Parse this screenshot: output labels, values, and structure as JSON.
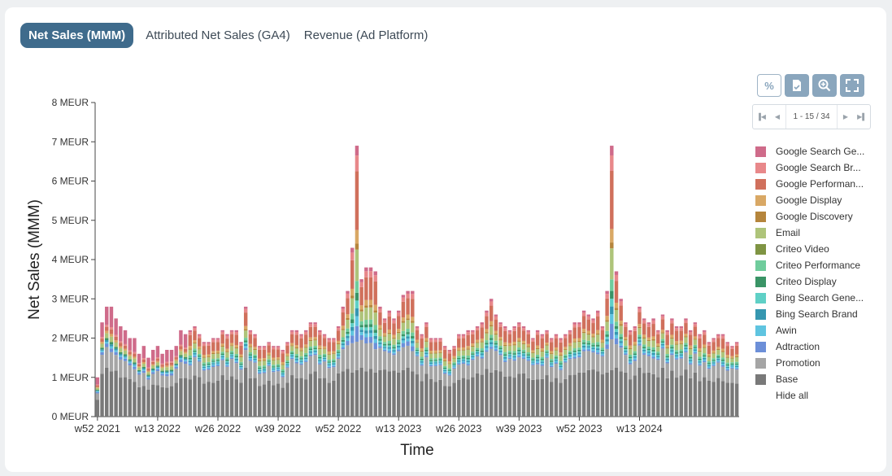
{
  "tabs": [
    "Net Sales (MMM)",
    "Attributed Net Sales (GA4)",
    "Revenue (Ad Platform)"
  ],
  "toolbar": {
    "percent_icon": "percent-icon",
    "export_icon": "export-icon",
    "zoom_icon": "zoom-icon",
    "fullscreen_icon": "fullscreen-icon"
  },
  "pager": {
    "info": "1 - 15 / 34"
  },
  "legend": {
    "items": [
      {
        "label": "Google Search Ge...",
        "color": "#cf6b8a"
      },
      {
        "label": "Google Search Br...",
        "color": "#e8888a"
      },
      {
        "label": "Google Performan...",
        "color": "#d0705c"
      },
      {
        "label": "Google Display",
        "color": "#d9a865"
      },
      {
        "label": "Google Discovery",
        "color": "#b5853c"
      },
      {
        "label": "Email",
        "color": "#aec47a"
      },
      {
        "label": "Criteo Video",
        "color": "#7f9443"
      },
      {
        "label": "Criteo Performance",
        "color": "#6fcc9c"
      },
      {
        "label": "Criteo Display",
        "color": "#3a9466"
      },
      {
        "label": "Bing Search Gene...",
        "color": "#5fd0c6"
      },
      {
        "label": "Bing Search Brand",
        "color": "#3697b0"
      },
      {
        "label": "Awin",
        "color": "#5fc4e0"
      },
      {
        "label": "Adtraction",
        "color": "#6c8fd8"
      },
      {
        "label": "Promotion",
        "color": "#a5a5a5"
      },
      {
        "label": "Base",
        "color": "#797979"
      }
    ],
    "hide_all": "Hide all"
  },
  "chart_data": {
    "type": "bar",
    "stacked": true,
    "xlabel": "Time",
    "ylabel": "Net Sales (MMM)",
    "ylim": [
      0,
      8
    ],
    "yticks": [
      "0 MEUR",
      "1 MEUR",
      "2 MEUR",
      "3 MEUR",
      "4 MEUR",
      "5 MEUR",
      "6 MEUR",
      "7 MEUR",
      "8 MEUR"
    ],
    "xticks": [
      "w52 2021",
      "w13 2022",
      "w26 2022",
      "w39 2022",
      "w52 2022",
      "w13 2023",
      "w26 2023",
      "w39 2023",
      "w52 2023",
      "w13 2024"
    ],
    "weeks_between_ticks": 13,
    "totals": [
      1.0,
      2.4,
      2.8,
      2.8,
      2.5,
      2.3,
      2.2,
      2.0,
      2.0,
      1.6,
      1.8,
      1.5,
      1.7,
      1.8,
      1.6,
      1.7,
      1.7,
      1.8,
      2.2,
      2.1,
      2.2,
      2.3,
      2.1,
      1.9,
      1.9,
      2.0,
      2.0,
      2.2,
      2.1,
      2.2,
      2.2,
      1.9,
      2.8,
      2.2,
      2.1,
      1.8,
      1.8,
      1.9,
      1.8,
      1.8,
      1.7,
      1.9,
      2.2,
      2.2,
      2.1,
      2.2,
      2.4,
      2.4,
      2.2,
      2.1,
      2.0,
      2.0,
      2.3,
      2.8,
      3.2,
      4.3,
      6.9,
      3.5,
      3.8,
      3.8,
      3.7,
      2.8,
      2.5,
      2.7,
      2.5,
      2.7,
      3.1,
      3.2,
      3.2,
      2.3,
      2.1,
      2.4,
      2.0,
      2.0,
      2.0,
      1.8,
      1.7,
      1.8,
      2.1,
      2.1,
      2.2,
      2.2,
      2.3,
      2.4,
      2.7,
      3.0,
      2.6,
      2.4,
      2.3,
      2.2,
      2.3,
      2.4,
      2.3,
      2.2,
      2.0,
      2.2,
      2.1,
      2.2,
      2.0,
      2.1,
      2.0,
      2.1,
      2.2,
      2.4,
      2.4,
      2.7,
      2.6,
      2.5,
      2.7,
      2.3,
      3.2,
      6.9,
      3.7,
      3.0,
      2.4,
      2.2,
      2.3,
      2.8,
      2.5,
      2.4,
      2.5,
      2.2,
      2.6,
      2.2,
      2.5,
      2.3,
      2.3,
      2.5,
      2.2,
      2.4,
      2.1,
      2.2,
      1.9,
      2.0,
      2.1,
      2.1,
      1.9,
      1.8,
      1.9
    ]
  }
}
